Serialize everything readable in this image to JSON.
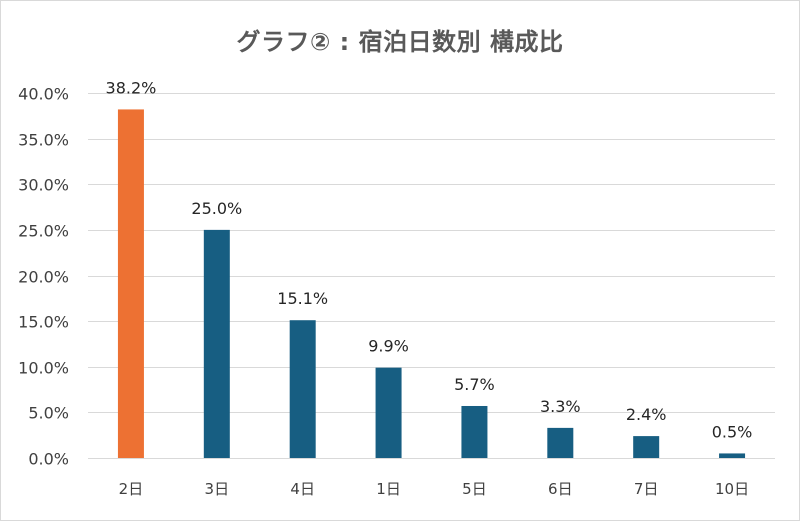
{
  "chart_data": {
    "type": "bar",
    "title": "グラフ② : 宿泊日数別 構成比",
    "xlabel": "",
    "ylabel": "",
    "categories": [
      "2日",
      "3日",
      "4日",
      "1日",
      "5日",
      "6日",
      "7日",
      "10日"
    ],
    "values": [
      38.2,
      25.0,
      15.1,
      9.9,
      5.7,
      3.3,
      2.4,
      0.5
    ],
    "data_labels": [
      "38.2%",
      "25.0%",
      "15.1%",
      "9.9%",
      "5.7%",
      "3.3%",
      "2.4%",
      "0.5%"
    ],
    "ylim": [
      0,
      40
    ],
    "yticks": [
      0,
      5,
      10,
      15,
      20,
      25,
      30,
      35,
      40
    ],
    "ytick_labels": [
      "0.0%",
      "5.0%",
      "10.0%",
      "15.0%",
      "20.0%",
      "25.0%",
      "30.0%",
      "35.0%",
      "40.0%"
    ],
    "grid": true,
    "legend": "none",
    "colors": {
      "highlight": "#ed7133",
      "default": "#175e82",
      "gridline": "#d9d9d9",
      "tick_text": "#404040",
      "label_text": "#262626"
    },
    "highlight_index": 0
  }
}
